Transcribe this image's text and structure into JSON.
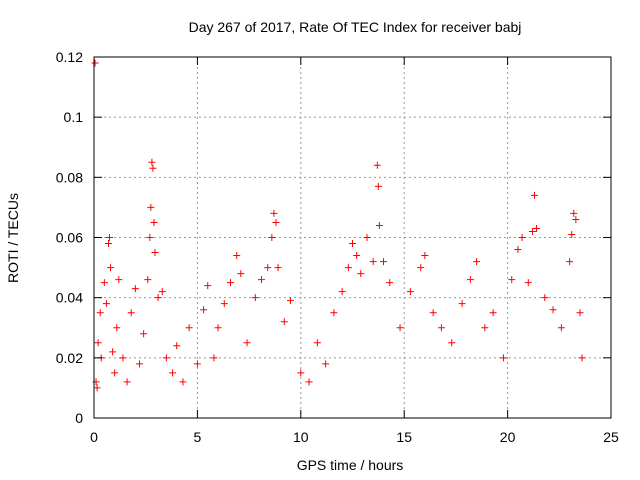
{
  "chart_data": {
    "type": "scatter",
    "title": "Day 267 of 2017, Rate Of TEC Index for receiver babj",
    "xlabel": "GPS time / hours",
    "ylabel": "ROTI / TECUs",
    "xlim": [
      0,
      25
    ],
    "ylim": [
      0,
      0.12
    ],
    "x_ticks": [
      0,
      5,
      10,
      15,
      20,
      25
    ],
    "x_tick_labels": [
      "0",
      "5",
      "10",
      "15",
      "20",
      "25"
    ],
    "y_ticks": [
      0,
      0.02,
      0.04,
      0.06,
      0.08,
      0.1,
      0.12
    ],
    "y_tick_labels": [
      "0",
      "0.02",
      "0.04",
      "0.06",
      "0.08",
      "0.1",
      "0.12"
    ],
    "grid": true,
    "marker": "+",
    "color": "#ff0000",
    "series": [
      {
        "name": "ROTI",
        "points": [
          [
            0.05,
            0.118
          ],
          [
            0.1,
            0.012
          ],
          [
            0.15,
            0.01
          ],
          [
            0.2,
            0.025
          ],
          [
            0.3,
            0.035
          ],
          [
            0.35,
            0.02
          ],
          [
            0.5,
            0.045
          ],
          [
            0.6,
            0.038
          ],
          [
            0.7,
            0.058
          ],
          [
            0.75,
            0.06
          ],
          [
            0.8,
            0.05
          ],
          [
            0.9,
            0.022
          ],
          [
            1.0,
            0.015
          ],
          [
            1.1,
            0.03
          ],
          [
            1.2,
            0.046
          ],
          [
            1.4,
            0.02
          ],
          [
            1.6,
            0.012
          ],
          [
            1.8,
            0.035
          ],
          [
            2.0,
            0.043
          ],
          [
            2.2,
            0.018
          ],
          [
            2.4,
            0.028
          ],
          [
            2.6,
            0.046
          ],
          [
            2.7,
            0.06
          ],
          [
            2.75,
            0.07
          ],
          [
            2.8,
            0.085
          ],
          [
            2.85,
            0.083
          ],
          [
            2.9,
            0.065
          ],
          [
            2.95,
            0.055
          ],
          [
            3.1,
            0.04
          ],
          [
            3.3,
            0.042
          ],
          [
            3.5,
            0.02
          ],
          [
            3.8,
            0.015
          ],
          [
            4.0,
            0.024
          ],
          [
            4.3,
            0.012
          ],
          [
            4.6,
            0.03
          ],
          [
            5.0,
            0.018
          ],
          [
            5.3,
            0.036
          ],
          [
            5.5,
            0.044
          ],
          [
            5.8,
            0.02
          ],
          [
            6.0,
            0.03
          ],
          [
            6.3,
            0.038
          ],
          [
            6.6,
            0.045
          ],
          [
            6.9,
            0.054
          ],
          [
            7.1,
            0.048
          ],
          [
            7.4,
            0.025
          ],
          [
            7.8,
            0.04
          ],
          [
            8.1,
            0.046
          ],
          [
            8.4,
            0.05
          ],
          [
            8.6,
            0.06
          ],
          [
            8.7,
            0.068
          ],
          [
            8.8,
            0.065
          ],
          [
            8.9,
            0.05
          ],
          [
            9.2,
            0.032
          ],
          [
            9.5,
            0.039
          ],
          [
            10.0,
            0.015
          ],
          [
            10.4,
            0.012
          ],
          [
            10.8,
            0.025
          ],
          [
            11.2,
            0.018
          ],
          [
            11.6,
            0.035
          ],
          [
            12.0,
            0.042
          ],
          [
            12.3,
            0.05
          ],
          [
            12.5,
            0.058
          ],
          [
            12.7,
            0.054
          ],
          [
            12.9,
            0.048
          ],
          [
            13.2,
            0.06
          ],
          [
            13.5,
            0.052
          ],
          [
            13.7,
            0.084
          ],
          [
            13.75,
            0.077
          ],
          [
            13.8,
            0.064
          ],
          [
            14.0,
            0.052
          ],
          [
            14.3,
            0.045
          ],
          [
            14.8,
            0.03
          ],
          [
            15.3,
            0.042
          ],
          [
            15.8,
            0.05
          ],
          [
            16.0,
            0.054
          ],
          [
            16.4,
            0.035
          ],
          [
            16.8,
            0.03
          ],
          [
            17.3,
            0.025
          ],
          [
            17.8,
            0.038
          ],
          [
            18.2,
            0.046
          ],
          [
            18.5,
            0.052
          ],
          [
            18.9,
            0.03
          ],
          [
            19.3,
            0.035
          ],
          [
            19.8,
            0.02
          ],
          [
            20.2,
            0.046
          ],
          [
            20.5,
            0.056
          ],
          [
            20.7,
            0.06
          ],
          [
            21.0,
            0.045
          ],
          [
            21.2,
            0.062
          ],
          [
            21.3,
            0.074
          ],
          [
            21.4,
            0.063
          ],
          [
            21.8,
            0.04
          ],
          [
            22.2,
            0.036
          ],
          [
            22.6,
            0.03
          ],
          [
            23.0,
            0.052
          ],
          [
            23.1,
            0.061
          ],
          [
            23.2,
            0.068
          ],
          [
            23.3,
            0.066
          ],
          [
            23.5,
            0.035
          ],
          [
            23.6,
            0.02
          ]
        ]
      }
    ]
  }
}
